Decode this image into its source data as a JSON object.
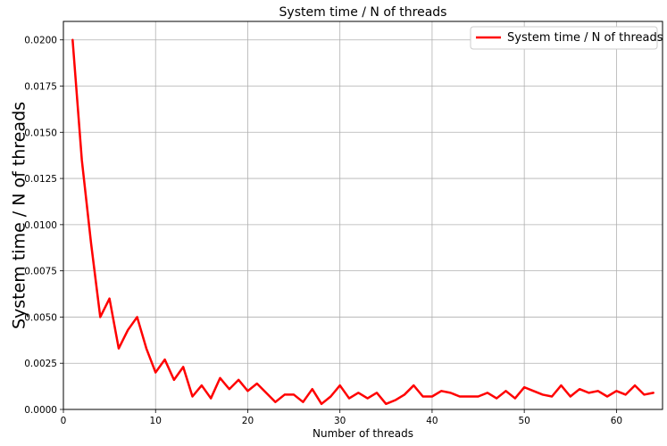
{
  "chart_data": {
    "type": "line",
    "title": "System time / N of threads",
    "xlabel": "Number of threads",
    "ylabel": "System time / N of threads",
    "xlim": [
      0,
      65
    ],
    "ylim": [
      0,
      0.021
    ],
    "xticks": [
      0,
      10,
      20,
      30,
      40,
      50,
      60
    ],
    "xtick_labels": [
      "0",
      "10",
      "20",
      "30",
      "40",
      "50",
      "60"
    ],
    "yticks": [
      0,
      0.0025,
      0.005,
      0.0075,
      0.01,
      0.0125,
      0.015,
      0.0175,
      0.02
    ],
    "ytick_labels": [
      "0.0000",
      "0.0025",
      "0.0050",
      "0.0075",
      "0.0100",
      "0.0125",
      "0.0150",
      "0.0175",
      "0.0200"
    ],
    "grid": true,
    "legend_position": "top-right",
    "series": [
      {
        "name": "System time / N of threads",
        "color": "#ff0000",
        "x": [
          1,
          2,
          3,
          4,
          5,
          6,
          7,
          8,
          9,
          10,
          11,
          12,
          13,
          14,
          15,
          16,
          17,
          18,
          19,
          20,
          21,
          22,
          23,
          24,
          25,
          26,
          27,
          28,
          29,
          30,
          31,
          32,
          33,
          34,
          35,
          36,
          37,
          38,
          39,
          40,
          41,
          42,
          43,
          44,
          45,
          46,
          47,
          48,
          49,
          50,
          51,
          52,
          53,
          54,
          55,
          56,
          57,
          58,
          59,
          60,
          61,
          62,
          63,
          64
        ],
        "y": [
          0.02,
          0.0135,
          0.009,
          0.005,
          0.006,
          0.0033,
          0.0043,
          0.005,
          0.0033,
          0.002,
          0.0027,
          0.0016,
          0.0023,
          0.0007,
          0.0013,
          0.0006,
          0.0017,
          0.0011,
          0.0016,
          0.001,
          0.0014,
          0.0009,
          0.0004,
          0.0008,
          0.0008,
          0.0004,
          0.0011,
          0.0003,
          0.0007,
          0.0013,
          0.0006,
          0.0009,
          0.0006,
          0.0009,
          0.0003,
          0.0005,
          0.0008,
          0.0013,
          0.0007,
          0.0007,
          0.001,
          0.0009,
          0.0007,
          0.0007,
          0.0007,
          0.0009,
          0.0006,
          0.001,
          0.0006,
          0.0012,
          0.001,
          0.0008,
          0.0007,
          0.0013,
          0.0007,
          0.0011,
          0.0009,
          0.001,
          0.0007,
          0.001,
          0.0008,
          0.0013,
          0.0008,
          0.0009
        ]
      }
    ]
  }
}
